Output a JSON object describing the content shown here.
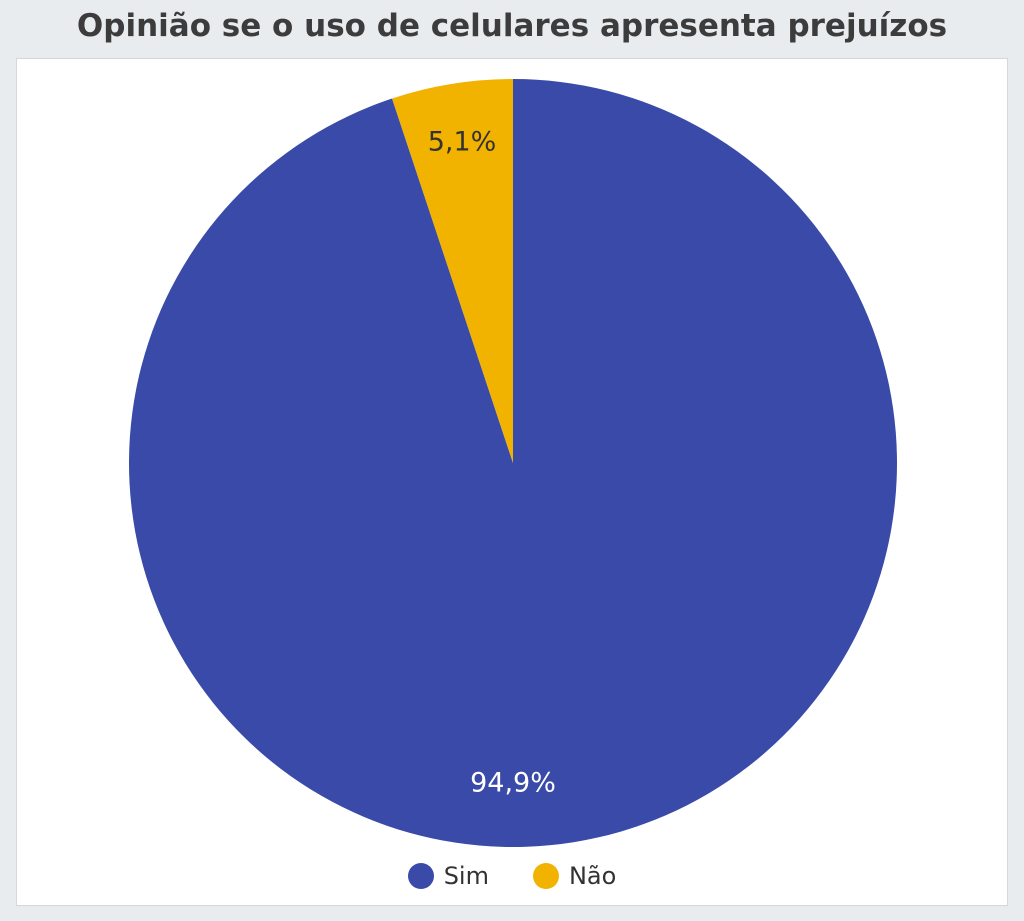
{
  "chart_data": {
    "type": "pie",
    "title": "Opinião se o uso de celulares apresenta prejuízos",
    "legend_position": "bottom",
    "slices": [
      {
        "name": "Sim",
        "value": 94.9,
        "label": "94,9%",
        "color": "#3a4aa8",
        "label_color": "#ffffff"
      },
      {
        "name": "Não",
        "value": 5.1,
        "label": "5,1%",
        "color": "#f2b200",
        "label_color": "#333333"
      }
    ]
  }
}
